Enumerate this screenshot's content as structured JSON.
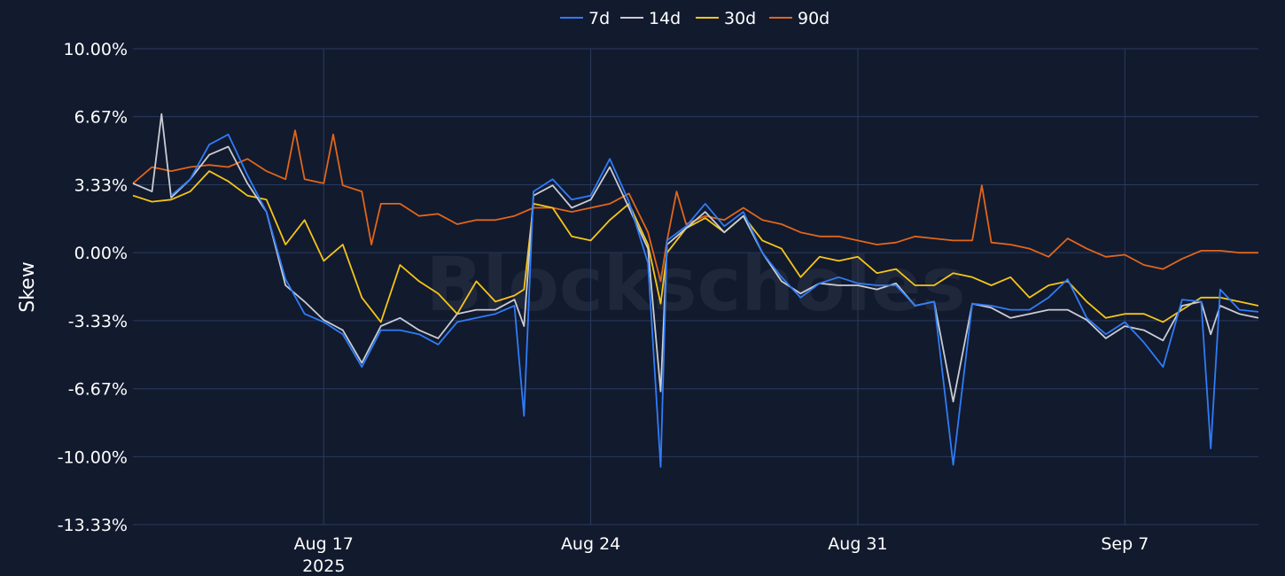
{
  "chart_data": {
    "type": "line",
    "ylabel": "Skew",
    "watermark": "Blockscholes",
    "x_range": [
      "2025-08-12",
      "2025-09-10T12:00"
    ],
    "ylim": [
      -13.33,
      10.0
    ],
    "y_ticks": [
      {
        "value": 10.0,
        "label": "10.00%"
      },
      {
        "value": 6.67,
        "label": "6.67%"
      },
      {
        "value": 3.33,
        "label": "3.33%"
      },
      {
        "value": 0.0,
        "label": "0.00%"
      },
      {
        "value": -3.33,
        "label": "-3.33%"
      },
      {
        "value": -6.67,
        "label": "-6.67%"
      },
      {
        "value": -10.0,
        "label": "-10.00%"
      },
      {
        "value": -13.33,
        "label": "-13.33%"
      }
    ],
    "x_ticks": [
      {
        "date": "2025-08-17",
        "label": "Aug 17",
        "sublabel": "2025"
      },
      {
        "date": "2025-08-24",
        "label": "Aug 24",
        "sublabel": ""
      },
      {
        "date": "2025-08-31",
        "label": "Aug 31",
        "sublabel": ""
      },
      {
        "date": "2025-09-07",
        "label": "Sep 7",
        "sublabel": ""
      }
    ],
    "grid": true,
    "legend_position": "top-center",
    "series": [
      {
        "name": "7d",
        "color": "#2f7cf6",
        "points": [
          [
            "2025-08-13",
            2.8
          ],
          [
            "2025-08-13T12:00",
            3.6
          ],
          [
            "2025-08-14",
            5.3
          ],
          [
            "2025-08-14T12:00",
            5.8
          ],
          [
            "2025-08-15",
            3.8
          ],
          [
            "2025-08-15T12:00",
            2.0
          ],
          [
            "2025-08-16",
            -1.3
          ],
          [
            "2025-08-16T12:00",
            -3.0
          ],
          [
            "2025-08-17",
            -3.4
          ],
          [
            "2025-08-17T12:00",
            -4.0
          ],
          [
            "2025-08-18",
            -5.6
          ],
          [
            "2025-08-18T12:00",
            -3.8
          ],
          [
            "2025-08-19",
            -3.8
          ],
          [
            "2025-08-19T12:00",
            -4.0
          ],
          [
            "2025-08-20",
            -4.5
          ],
          [
            "2025-08-20T12:00",
            -3.4
          ],
          [
            "2025-08-21",
            -3.2
          ],
          [
            "2025-08-21T12:00",
            -3.0
          ],
          [
            "2025-08-22",
            -2.6
          ],
          [
            "2025-08-22T06:00",
            -8.0
          ],
          [
            "2025-08-22T12:00",
            3.0
          ],
          [
            "2025-08-23",
            3.6
          ],
          [
            "2025-08-23T12:00",
            2.6
          ],
          [
            "2025-08-24",
            2.8
          ],
          [
            "2025-08-24T12:00",
            4.6
          ],
          [
            "2025-08-25",
            2.5
          ],
          [
            "2025-08-25T12:00",
            -0.5
          ],
          [
            "2025-08-25T20:00",
            -10.5
          ],
          [
            "2025-08-26",
            0.6
          ],
          [
            "2025-08-26T12:00",
            1.3
          ],
          [
            "2025-08-27",
            2.4
          ],
          [
            "2025-08-27T12:00",
            1.3
          ],
          [
            "2025-08-28",
            2.0
          ],
          [
            "2025-08-28T12:00",
            0.0
          ],
          [
            "2025-08-29",
            -1.2
          ],
          [
            "2025-08-29T12:00",
            -2.2
          ],
          [
            "2025-08-30",
            -1.5
          ],
          [
            "2025-08-30T12:00",
            -1.2
          ],
          [
            "2025-08-31",
            -1.5
          ],
          [
            "2025-08-31T12:00",
            -1.6
          ],
          [
            "2025-09-01",
            -1.6
          ],
          [
            "2025-09-01T12:00",
            -2.6
          ],
          [
            "2025-09-02",
            -2.4
          ],
          [
            "2025-09-02T12:00",
            -10.4
          ],
          [
            "2025-09-03",
            -2.5
          ],
          [
            "2025-09-03T12:00",
            -2.6
          ],
          [
            "2025-09-04",
            -2.8
          ],
          [
            "2025-09-04T12:00",
            -2.8
          ],
          [
            "2025-09-05",
            -2.2
          ],
          [
            "2025-09-05T12:00",
            -1.3
          ],
          [
            "2025-09-06",
            -3.2
          ],
          [
            "2025-09-06T12:00",
            -4.0
          ],
          [
            "2025-09-07",
            -3.4
          ],
          [
            "2025-09-07T12:00",
            -4.4
          ],
          [
            "2025-09-08",
            -5.6
          ],
          [
            "2025-09-08T12:00",
            -2.3
          ],
          [
            "2025-09-09",
            -2.4
          ],
          [
            "2025-09-09T06:00",
            -9.6
          ],
          [
            "2025-09-09T12:00",
            -1.8
          ],
          [
            "2025-09-10",
            -2.8
          ],
          [
            "2025-09-10T12:00",
            -2.9
          ]
        ]
      },
      {
        "name": "14d",
        "color": "#c9ccd3",
        "points": [
          [
            "2025-08-12",
            3.4
          ],
          [
            "2025-08-12T12:00",
            3.0
          ],
          [
            "2025-08-12T18:00",
            6.8
          ],
          [
            "2025-08-13",
            2.7
          ],
          [
            "2025-08-13T12:00",
            3.6
          ],
          [
            "2025-08-14",
            4.8
          ],
          [
            "2025-08-14T12:00",
            5.2
          ],
          [
            "2025-08-15",
            3.4
          ],
          [
            "2025-08-15T12:00",
            2.0
          ],
          [
            "2025-08-16",
            -1.6
          ],
          [
            "2025-08-16T12:00",
            -2.4
          ],
          [
            "2025-08-17",
            -3.3
          ],
          [
            "2025-08-17T12:00",
            -3.8
          ],
          [
            "2025-08-18",
            -5.4
          ],
          [
            "2025-08-18T12:00",
            -3.6
          ],
          [
            "2025-08-19",
            -3.2
          ],
          [
            "2025-08-19T12:00",
            -3.8
          ],
          [
            "2025-08-20",
            -4.2
          ],
          [
            "2025-08-20T12:00",
            -3.0
          ],
          [
            "2025-08-21",
            -2.8
          ],
          [
            "2025-08-21T12:00",
            -2.8
          ],
          [
            "2025-08-22",
            -2.3
          ],
          [
            "2025-08-22T06:00",
            -3.6
          ],
          [
            "2025-08-22T12:00",
            2.8
          ],
          [
            "2025-08-23",
            3.3
          ],
          [
            "2025-08-23T12:00",
            2.2
          ],
          [
            "2025-08-24",
            2.6
          ],
          [
            "2025-08-24T12:00",
            4.2
          ],
          [
            "2025-08-25",
            2.2
          ],
          [
            "2025-08-25T12:00",
            0.2
          ],
          [
            "2025-08-25T20:00",
            -6.8
          ],
          [
            "2025-08-26",
            0.4
          ],
          [
            "2025-08-26T12:00",
            1.2
          ],
          [
            "2025-08-27",
            2.0
          ],
          [
            "2025-08-27T12:00",
            1.0
          ],
          [
            "2025-08-28",
            1.8
          ],
          [
            "2025-08-28T12:00",
            0.0
          ],
          [
            "2025-08-29",
            -1.4
          ],
          [
            "2025-08-29T12:00",
            -2.0
          ],
          [
            "2025-08-30",
            -1.5
          ],
          [
            "2025-08-30T12:00",
            -1.6
          ],
          [
            "2025-08-31",
            -1.6
          ],
          [
            "2025-08-31T12:00",
            -1.8
          ],
          [
            "2025-09-01",
            -1.5
          ],
          [
            "2025-09-01T12:00",
            -2.6
          ],
          [
            "2025-09-02",
            -2.4
          ],
          [
            "2025-09-02T12:00",
            -7.3
          ],
          [
            "2025-09-03",
            -2.5
          ],
          [
            "2025-09-03T12:00",
            -2.7
          ],
          [
            "2025-09-04",
            -3.2
          ],
          [
            "2025-09-04T12:00",
            -3.0
          ],
          [
            "2025-09-05",
            -2.8
          ],
          [
            "2025-09-05T12:00",
            -2.8
          ],
          [
            "2025-09-06",
            -3.3
          ],
          [
            "2025-09-06T12:00",
            -4.2
          ],
          [
            "2025-09-07",
            -3.6
          ],
          [
            "2025-09-07T12:00",
            -3.8
          ],
          [
            "2025-09-08",
            -4.3
          ],
          [
            "2025-09-08T12:00",
            -2.6
          ],
          [
            "2025-09-09",
            -2.4
          ],
          [
            "2025-09-09T06:00",
            -4.0
          ],
          [
            "2025-09-09T12:00",
            -2.6
          ],
          [
            "2025-09-10",
            -3.0
          ],
          [
            "2025-09-10T12:00",
            -3.2
          ]
        ]
      },
      {
        "name": "30d",
        "color": "#f5c518",
        "points": [
          [
            "2025-08-12",
            2.8
          ],
          [
            "2025-08-12T12:00",
            2.5
          ],
          [
            "2025-08-13",
            2.6
          ],
          [
            "2025-08-13T12:00",
            3.0
          ],
          [
            "2025-08-14",
            4.0
          ],
          [
            "2025-08-14T12:00",
            3.5
          ],
          [
            "2025-08-15",
            2.8
          ],
          [
            "2025-08-15T12:00",
            2.6
          ],
          [
            "2025-08-16",
            0.4
          ],
          [
            "2025-08-16T12:00",
            1.6
          ],
          [
            "2025-08-17",
            -0.4
          ],
          [
            "2025-08-17T12:00",
            0.4
          ],
          [
            "2025-08-18",
            -2.2
          ],
          [
            "2025-08-18T12:00",
            -3.4
          ],
          [
            "2025-08-19",
            -0.6
          ],
          [
            "2025-08-19T12:00",
            -1.4
          ],
          [
            "2025-08-20",
            -2.0
          ],
          [
            "2025-08-20T12:00",
            -3.0
          ],
          [
            "2025-08-21",
            -1.4
          ],
          [
            "2025-08-21T12:00",
            -2.4
          ],
          [
            "2025-08-22",
            -2.1
          ],
          [
            "2025-08-22T06:00",
            -1.8
          ],
          [
            "2025-08-22T12:00",
            2.4
          ],
          [
            "2025-08-23",
            2.2
          ],
          [
            "2025-08-23T12:00",
            0.8
          ],
          [
            "2025-08-24",
            0.6
          ],
          [
            "2025-08-24T12:00",
            1.6
          ],
          [
            "2025-08-25",
            2.4
          ],
          [
            "2025-08-25T12:00",
            0.4
          ],
          [
            "2025-08-25T20:00",
            -2.5
          ],
          [
            "2025-08-26",
            0.0
          ],
          [
            "2025-08-26T12:00",
            1.2
          ],
          [
            "2025-08-27",
            1.7
          ],
          [
            "2025-08-27T12:00",
            1.0
          ],
          [
            "2025-08-28",
            1.8
          ],
          [
            "2025-08-28T12:00",
            0.6
          ],
          [
            "2025-08-29",
            0.2
          ],
          [
            "2025-08-29T12:00",
            -1.2
          ],
          [
            "2025-08-30",
            -0.2
          ],
          [
            "2025-08-30T12:00",
            -0.4
          ],
          [
            "2025-08-31",
            -0.2
          ],
          [
            "2025-08-31T12:00",
            -1.0
          ],
          [
            "2025-09-01",
            -0.8
          ],
          [
            "2025-09-01T12:00",
            -1.6
          ],
          [
            "2025-09-02",
            -1.6
          ],
          [
            "2025-09-02T12:00",
            -1.0
          ],
          [
            "2025-09-03",
            -1.2
          ],
          [
            "2025-09-03T12:00",
            -1.6
          ],
          [
            "2025-09-04",
            -1.2
          ],
          [
            "2025-09-04T12:00",
            -2.2
          ],
          [
            "2025-09-05",
            -1.6
          ],
          [
            "2025-09-05T12:00",
            -1.4
          ],
          [
            "2025-09-06",
            -2.4
          ],
          [
            "2025-09-06T12:00",
            -3.2
          ],
          [
            "2025-09-07",
            -3.0
          ],
          [
            "2025-09-07T12:00",
            -3.0
          ],
          [
            "2025-09-08",
            -3.4
          ],
          [
            "2025-09-08T12:00",
            -2.8
          ],
          [
            "2025-09-09",
            -2.2
          ],
          [
            "2025-09-09T12:00",
            -2.2
          ],
          [
            "2025-09-10",
            -2.4
          ],
          [
            "2025-09-10T12:00",
            -2.6
          ]
        ]
      },
      {
        "name": "90d",
        "color": "#e0661a",
        "points": [
          [
            "2025-08-12",
            3.4
          ],
          [
            "2025-08-12T12:00",
            4.2
          ],
          [
            "2025-08-13",
            4.0
          ],
          [
            "2025-08-13T12:00",
            4.2
          ],
          [
            "2025-08-14",
            4.3
          ],
          [
            "2025-08-14T12:00",
            4.2
          ],
          [
            "2025-08-15",
            4.6
          ],
          [
            "2025-08-15T12:00",
            4.0
          ],
          [
            "2025-08-16",
            3.6
          ],
          [
            "2025-08-16T06:00",
            6.0
          ],
          [
            "2025-08-16T12:00",
            3.6
          ],
          [
            "2025-08-17",
            3.4
          ],
          [
            "2025-08-17T06:00",
            5.8
          ],
          [
            "2025-08-17T12:00",
            3.3
          ],
          [
            "2025-08-18",
            3.0
          ],
          [
            "2025-08-18T06:00",
            0.4
          ],
          [
            "2025-08-18T12:00",
            2.4
          ],
          [
            "2025-08-19",
            2.4
          ],
          [
            "2025-08-19T12:00",
            1.8
          ],
          [
            "2025-08-20",
            1.9
          ],
          [
            "2025-08-20T12:00",
            1.4
          ],
          [
            "2025-08-21",
            1.6
          ],
          [
            "2025-08-21T12:00",
            1.6
          ],
          [
            "2025-08-22",
            1.8
          ],
          [
            "2025-08-22T12:00",
            2.2
          ],
          [
            "2025-08-23",
            2.2
          ],
          [
            "2025-08-23T12:00",
            2.0
          ],
          [
            "2025-08-24",
            2.2
          ],
          [
            "2025-08-24T12:00",
            2.4
          ],
          [
            "2025-08-25",
            2.9
          ],
          [
            "2025-08-25T12:00",
            1.0
          ],
          [
            "2025-08-25T20:00",
            -1.4
          ],
          [
            "2025-08-26",
            0.6
          ],
          [
            "2025-08-26T06:00",
            3.0
          ],
          [
            "2025-08-26T12:00",
            1.4
          ],
          [
            "2025-08-27",
            1.8
          ],
          [
            "2025-08-27T12:00",
            1.6
          ],
          [
            "2025-08-28",
            2.2
          ],
          [
            "2025-08-28T12:00",
            1.6
          ],
          [
            "2025-08-29",
            1.4
          ],
          [
            "2025-08-29T12:00",
            1.0
          ],
          [
            "2025-08-30",
            0.8
          ],
          [
            "2025-08-30T12:00",
            0.8
          ],
          [
            "2025-08-31",
            0.6
          ],
          [
            "2025-08-31T12:00",
            0.4
          ],
          [
            "2025-09-01",
            0.5
          ],
          [
            "2025-09-01T12:00",
            0.8
          ],
          [
            "2025-09-02",
            0.7
          ],
          [
            "2025-09-02T12:00",
            0.6
          ],
          [
            "2025-09-03",
            0.6
          ],
          [
            "2025-09-03T06:00",
            3.3
          ],
          [
            "2025-09-03T12:00",
            0.5
          ],
          [
            "2025-09-04",
            0.4
          ],
          [
            "2025-09-04T12:00",
            0.2
          ],
          [
            "2025-09-05",
            -0.2
          ],
          [
            "2025-09-05T12:00",
            0.7
          ],
          [
            "2025-09-06",
            0.2
          ],
          [
            "2025-09-06T12:00",
            -0.2
          ],
          [
            "2025-09-07",
            -0.1
          ],
          [
            "2025-09-07T12:00",
            -0.6
          ],
          [
            "2025-09-08",
            -0.8
          ],
          [
            "2025-09-08T12:00",
            -0.3
          ],
          [
            "2025-09-09",
            0.1
          ],
          [
            "2025-09-09T12:00",
            0.1
          ],
          [
            "2025-09-10",
            0.0
          ],
          [
            "2025-09-10T12:00",
            0.0
          ]
        ]
      }
    ]
  }
}
